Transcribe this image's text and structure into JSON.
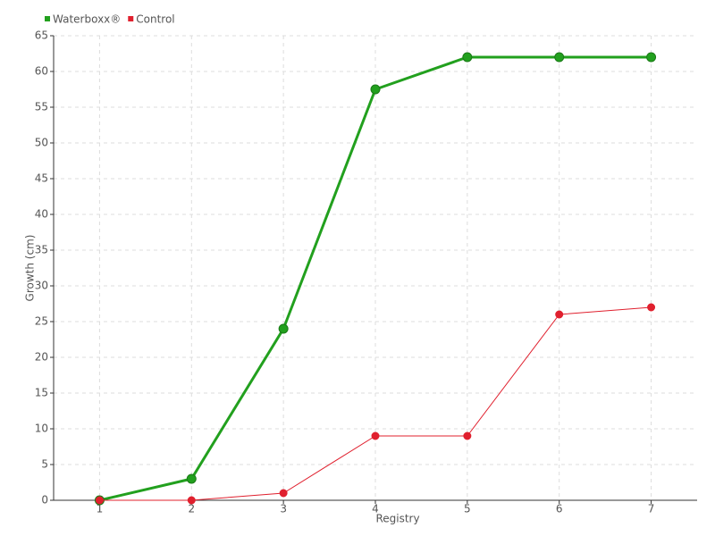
{
  "chart_data": {
    "type": "line",
    "x_label": "Registry",
    "y_label": "Growth (cm)",
    "x": [
      1,
      2,
      3,
      4,
      5,
      6,
      7
    ],
    "series": [
      {
        "name": "Waterboxx®",
        "color": "#22a01e",
        "values": [
          0,
          3,
          24,
          57.5,
          62,
          62,
          62
        ]
      },
      {
        "name": "Control",
        "color": "#e0202e",
        "values": [
          0,
          0,
          1,
          9,
          9,
          26,
          27
        ]
      }
    ],
    "xlim": [
      0.5,
      7.5
    ],
    "xticks": [
      1,
      2,
      3,
      4,
      5,
      6,
      7
    ],
    "ylim": [
      0,
      65
    ],
    "yticks": [
      0,
      5,
      10,
      15,
      20,
      25,
      30,
      35,
      40,
      45,
      50,
      55,
      60,
      65
    ],
    "grid": true,
    "legend": "top-left"
  }
}
